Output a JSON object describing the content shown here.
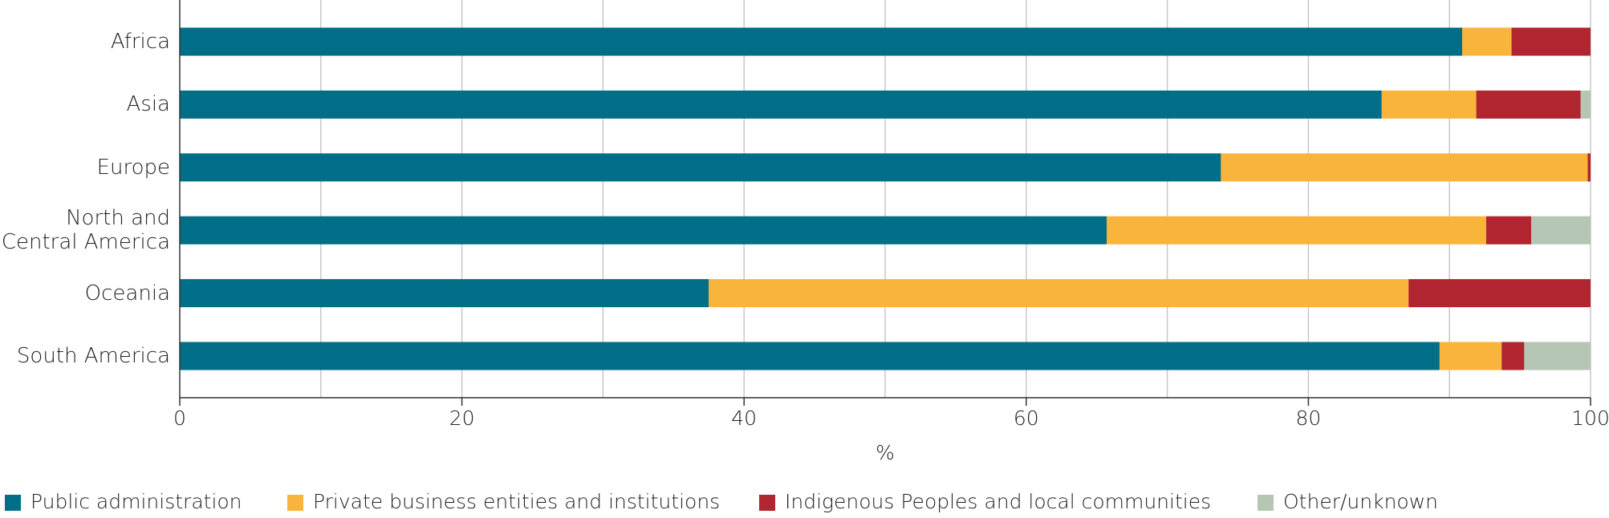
{
  "chart_data": {
    "type": "stacked-barh",
    "categories": [
      "Africa",
      "Asia",
      "Europe",
      "North and Central America",
      "Oceania",
      "South America"
    ],
    "series": [
      {
        "name": "Public administration",
        "color": "#006e86",
        "values": [
          90.9,
          85.2,
          73.8,
          65.7,
          37.5,
          89.3
        ]
      },
      {
        "name": "Private business entities and institutions",
        "color": "#f9b43b",
        "values": [
          3.5,
          6.7,
          26.0,
          26.9,
          49.6,
          4.4
        ]
      },
      {
        "name": "Indigenous Peoples and local communities",
        "color": "#b0252f",
        "values": [
          5.6,
          7.4,
          0.2,
          3.2,
          12.9,
          1.6
        ]
      },
      {
        "name": "Other/unknown",
        "color": "#b5c6b5",
        "values": [
          0,
          0.7,
          0,
          4.2,
          0,
          4.7
        ]
      }
    ],
    "xlim": [
      0,
      100
    ],
    "xticks": [
      0,
      20,
      40,
      60,
      80,
      100
    ],
    "xgrid": [
      10,
      20,
      30,
      40,
      50,
      60,
      70,
      80,
      90,
      100
    ],
    "xlabel": "%",
    "grid": true,
    "legend": "bottom"
  }
}
